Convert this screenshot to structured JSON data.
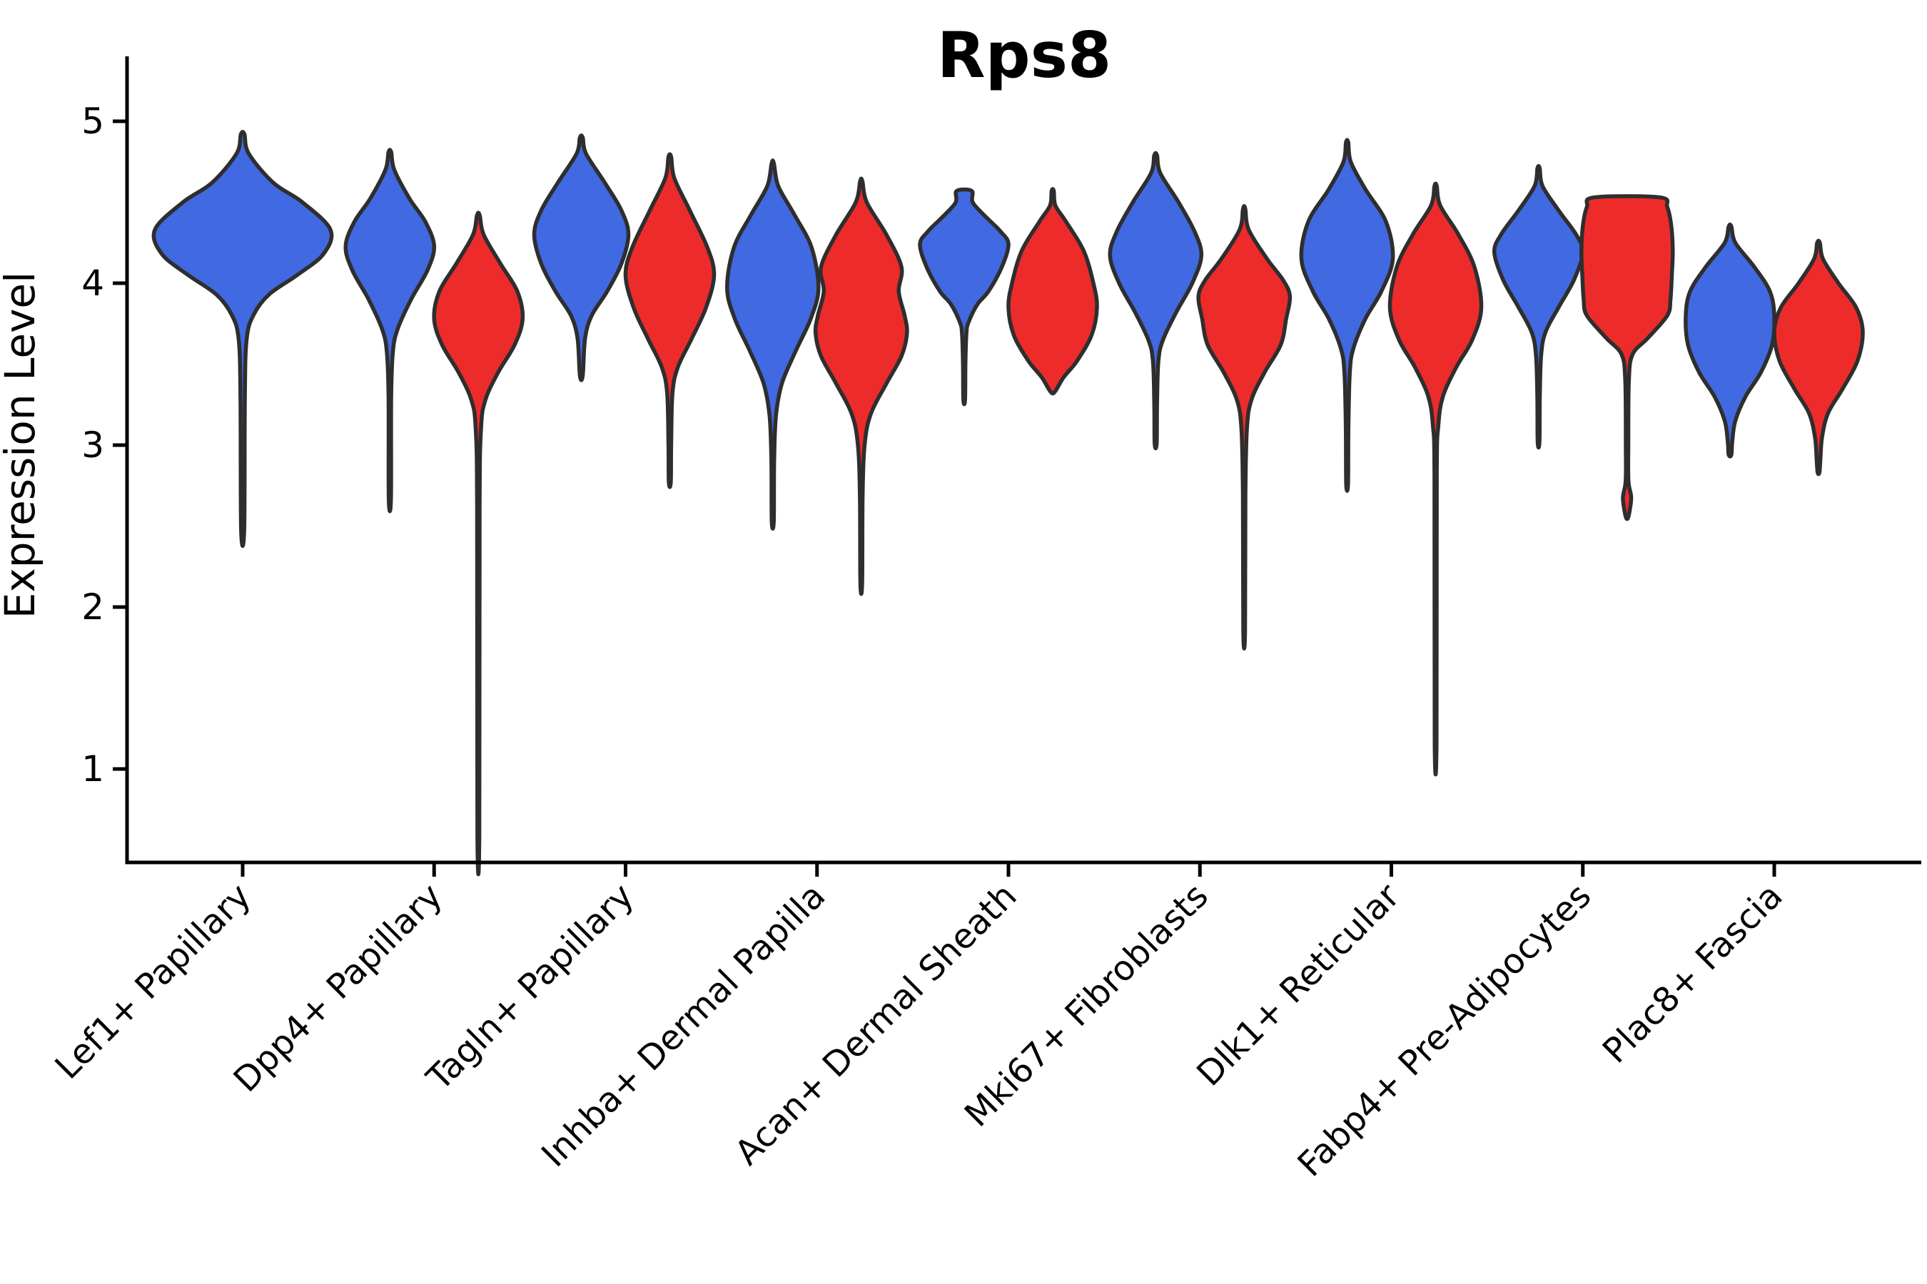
{
  "figure": {
    "title": "Rps8",
    "ylabel": "Expression Level"
  },
  "chart_data": {
    "type": "violin",
    "title": "Rps8",
    "xlabel": "",
    "ylabel": "Expression Level",
    "y_ticks": [
      5,
      4,
      3,
      2,
      1
    ],
    "ylim": [
      0.42,
      5.4
    ],
    "grid": false,
    "legend": "none",
    "groups": [
      "blue",
      "red"
    ],
    "colors": {
      "blue": "#4169E1",
      "red": "#EE2B2B",
      "outline": "#2E2E2E",
      "axis": "#000000",
      "text": "#000000"
    },
    "categories": [
      {
        "label": "Lef1+ Papillary",
        "violins": [
          {
            "group": "blue",
            "offset": 0,
            "halfwidth": 123,
            "profile": [
              [
                4.92,
                0.02
              ],
              [
                4.8,
                0.07
              ],
              [
                4.62,
                0.35
              ],
              [
                4.5,
                0.68
              ],
              [
                4.33,
                1.0
              ],
              [
                4.18,
                0.92
              ],
              [
                4.05,
                0.62
              ],
              [
                3.93,
                0.3
              ],
              [
                3.8,
                0.12
              ],
              [
                3.65,
                0.045
              ],
              [
                3.3,
                0.025
              ],
              [
                2.48,
                0.018
              ]
            ]
          }
        ]
      },
      {
        "label": "Dpp4+ Papillary",
        "violins": [
          {
            "group": "blue",
            "offset": -62,
            "halfwidth": 62,
            "profile": [
              [
                4.81,
                0.03
              ],
              [
                4.7,
                0.1
              ],
              [
                4.52,
                0.45
              ],
              [
                4.38,
                0.8
              ],
              [
                4.23,
                1.0
              ],
              [
                4.08,
                0.85
              ],
              [
                3.9,
                0.48
              ],
              [
                3.72,
                0.18
              ],
              [
                3.58,
                0.07
              ],
              [
                3.3,
                0.03
              ],
              [
                2.67,
                0.025
              ]
            ]
          },
          {
            "group": "red",
            "offset": 62,
            "halfwidth": 62,
            "profile": [
              [
                4.42,
                0.03
              ],
              [
                4.3,
                0.12
              ],
              [
                4.12,
                0.5
              ],
              [
                3.95,
                0.88
              ],
              [
                3.78,
                1.0
              ],
              [
                3.62,
                0.82
              ],
              [
                3.45,
                0.45
              ],
              [
                3.28,
                0.16
              ],
              [
                3.1,
                0.06
              ],
              [
                2.6,
                0.028
              ],
              [
                0.6,
                0.022
              ]
            ]
          }
        ]
      },
      {
        "label": "Tagln+ Papillary",
        "violins": [
          {
            "group": "blue",
            "offset": -62,
            "halfwidth": 66,
            "profile": [
              [
                4.9,
                0.03
              ],
              [
                4.8,
                0.1
              ],
              [
                4.62,
                0.5
              ],
              [
                4.45,
                0.85
              ],
              [
                4.3,
                1.0
              ],
              [
                4.12,
                0.85
              ],
              [
                3.95,
                0.55
              ],
              [
                3.8,
                0.22
              ],
              [
                3.66,
                0.08
              ],
              [
                3.43,
                0.03
              ]
            ]
          },
          {
            "group": "red",
            "offset": 62,
            "halfwidth": 62,
            "profile": [
              [
                4.78,
                0.03
              ],
              [
                4.65,
                0.1
              ],
              [
                4.45,
                0.45
              ],
              [
                4.22,
                0.85
              ],
              [
                4.05,
                1.0
              ],
              [
                3.85,
                0.82
              ],
              [
                3.65,
                0.48
              ],
              [
                3.48,
                0.18
              ],
              [
                3.32,
                0.06
              ],
              [
                3.0,
                0.03
              ],
              [
                2.77,
                0.022
              ]
            ]
          }
        ]
      },
      {
        "label": "Inhba+ Dermal Papilla",
        "violins": [
          {
            "group": "blue",
            "offset": -62,
            "halfwidth": 64,
            "profile": [
              [
                4.74,
                0.025
              ],
              [
                4.6,
                0.12
              ],
              [
                4.42,
                0.48
              ],
              [
                4.22,
                0.85
              ],
              [
                3.97,
                1.0
              ],
              [
                3.78,
                0.83
              ],
              [
                3.58,
                0.5
              ],
              [
                3.38,
                0.2
              ],
              [
                3.18,
                0.07
              ],
              [
                2.9,
                0.03
              ],
              [
                2.53,
                0.022
              ]
            ]
          },
          {
            "group": "red",
            "offset": 62,
            "halfwidth": 64,
            "profile": [
              [
                4.63,
                0.025
              ],
              [
                4.5,
                0.12
              ],
              [
                4.3,
                0.55
              ],
              [
                4.1,
                0.88
              ],
              [
                3.95,
                0.82
              ],
              [
                3.8,
                0.95
              ],
              [
                3.69,
                1.0
              ],
              [
                3.55,
                0.88
              ],
              [
                3.38,
                0.55
              ],
              [
                3.2,
                0.22
              ],
              [
                3.02,
                0.08
              ],
              [
                2.7,
                0.03
              ],
              [
                2.15,
                0.02
              ]
            ]
          }
        ]
      },
      {
        "label": "Acan+ Dermal Sheath",
        "violins": [
          {
            "group": "blue",
            "offset": -62,
            "halfwidth": 62,
            "profile": [
              [
                4.57,
                0.17
              ],
              [
                4.5,
                0.19
              ],
              [
                4.42,
                0.45
              ],
              [
                4.32,
                0.82
              ],
              [
                4.24,
                1.0
              ],
              [
                4.1,
                0.85
              ],
              [
                3.95,
                0.55
              ],
              [
                3.87,
                0.3
              ],
              [
                3.76,
                0.1
              ],
              [
                3.69,
                0.05
              ],
              [
                3.5,
                0.028
              ],
              [
                3.28,
                0.02
              ]
            ]
          },
          {
            "group": "red",
            "offset": 62,
            "halfwidth": 62,
            "profile": [
              [
                4.57,
                0.025
              ],
              [
                4.48,
                0.06
              ],
              [
                4.38,
                0.3
              ],
              [
                4.2,
                0.7
              ],
              [
                4.0,
                0.92
              ],
              [
                3.85,
                1.0
              ],
              [
                3.68,
                0.88
              ],
              [
                3.52,
                0.55
              ],
              [
                3.42,
                0.25
              ],
              [
                3.33,
                0.05
              ]
            ]
          }
        ]
      },
      {
        "label": "Mki67+ Fibroblasts",
        "violins": [
          {
            "group": "blue",
            "offset": -62,
            "halfwidth": 64,
            "profile": [
              [
                4.79,
                0.03
              ],
              [
                4.68,
                0.1
              ],
              [
                4.5,
                0.5
              ],
              [
                4.32,
                0.85
              ],
              [
                4.17,
                1.0
              ],
              [
                4.0,
                0.8
              ],
              [
                3.82,
                0.45
              ],
              [
                3.65,
                0.16
              ],
              [
                3.52,
                0.06
              ],
              [
                3.25,
                0.03
              ],
              [
                3.01,
                0.022
              ]
            ]
          },
          {
            "group": "red",
            "offset": 62,
            "halfwidth": 64,
            "profile": [
              [
                4.46,
                0.025
              ],
              [
                4.33,
                0.1
              ],
              [
                4.15,
                0.5
              ],
              [
                4.02,
                0.85
              ],
              [
                3.92,
                1.0
              ],
              [
                3.78,
                0.92
              ],
              [
                3.62,
                0.8
              ],
              [
                3.45,
                0.45
              ],
              [
                3.28,
                0.16
              ],
              [
                3.1,
                0.06
              ],
              [
                2.7,
                0.028
              ],
              [
                1.85,
                0.02
              ]
            ]
          }
        ]
      },
      {
        "label": "Dlk1+ Reticular",
        "violins": [
          {
            "group": "blue",
            "offset": -62,
            "halfwidth": 64,
            "profile": [
              [
                4.87,
                0.025
              ],
              [
                4.75,
                0.08
              ],
              [
                4.58,
                0.4
              ],
              [
                4.38,
                0.85
              ],
              [
                4.15,
                1.0
              ],
              [
                3.95,
                0.75
              ],
              [
                3.78,
                0.4
              ],
              [
                3.6,
                0.14
              ],
              [
                3.45,
                0.06
              ],
              [
                3.1,
                0.028
              ],
              [
                2.76,
                0.02
              ]
            ]
          },
          {
            "group": "red",
            "offset": 62,
            "halfwidth": 64,
            "profile": [
              [
                4.6,
                0.025
              ],
              [
                4.48,
                0.1
              ],
              [
                4.3,
                0.5
              ],
              [
                4.1,
                0.85
              ],
              [
                3.85,
                1.0
              ],
              [
                3.65,
                0.8
              ],
              [
                3.48,
                0.45
              ],
              [
                3.3,
                0.16
              ],
              [
                3.12,
                0.06
              ],
              [
                2.8,
                0.025
              ],
              [
                1.17,
                0.02
              ]
            ]
          }
        ]
      },
      {
        "label": "Fabp4+ Pre-Adipocytes",
        "violins": [
          {
            "group": "blue",
            "offset": -62,
            "halfwidth": 62,
            "profile": [
              [
                4.71,
                0.025
              ],
              [
                4.6,
                0.09
              ],
              [
                4.45,
                0.45
              ],
              [
                4.3,
                0.85
              ],
              [
                4.19,
                1.0
              ],
              [
                4.02,
                0.8
              ],
              [
                3.85,
                0.45
              ],
              [
                3.7,
                0.16
              ],
              [
                3.56,
                0.06
              ],
              [
                3.3,
                0.028
              ],
              [
                3.02,
                0.02
              ]
            ]
          },
          {
            "group": "red",
            "offset": 62,
            "halfwidth": 64,
            "profile": [
              [
                4.53,
                0.72
              ],
              [
                4.47,
                0.88
              ],
              [
                4.35,
                0.97
              ],
              [
                4.2,
                1.0
              ],
              [
                4.05,
                0.98
              ],
              [
                3.9,
                0.95
              ],
              [
                3.8,
                0.88
              ],
              [
                3.66,
                0.45
              ],
              [
                3.56,
                0.12
              ],
              [
                3.4,
                0.04
              ],
              [
                3.0,
                0.028
              ],
              [
                2.78,
                0.03
              ],
              [
                2.68,
                0.09
              ],
              [
                2.6,
                0.06
              ],
              [
                2.55,
                0.02
              ]
            ]
          }
        ]
      },
      {
        "label": "Plac8+ Fascia",
        "violins": [
          {
            "group": "blue",
            "offset": -62,
            "halfwidth": 62,
            "profile": [
              [
                4.35,
                0.03
              ],
              [
                4.25,
                0.12
              ],
              [
                4.1,
                0.55
              ],
              [
                3.95,
                0.9
              ],
              [
                3.8,
                1.0
              ],
              [
                3.62,
                0.95
              ],
              [
                3.45,
                0.7
              ],
              [
                3.3,
                0.35
              ],
              [
                3.15,
                0.12
              ],
              [
                3.02,
                0.05
              ],
              [
                2.94,
                0.03
              ]
            ]
          },
          {
            "group": "red",
            "offset": 62,
            "halfwidth": 62,
            "profile": [
              [
                4.25,
                0.03
              ],
              [
                4.15,
                0.1
              ],
              [
                4.0,
                0.45
              ],
              [
                3.85,
                0.85
              ],
              [
                3.7,
                1.0
              ],
              [
                3.52,
                0.88
              ],
              [
                3.35,
                0.55
              ],
              [
                3.2,
                0.22
              ],
              [
                3.05,
                0.08
              ],
              [
                2.9,
                0.04
              ],
              [
                2.83,
                0.02
              ]
            ]
          }
        ]
      }
    ]
  }
}
